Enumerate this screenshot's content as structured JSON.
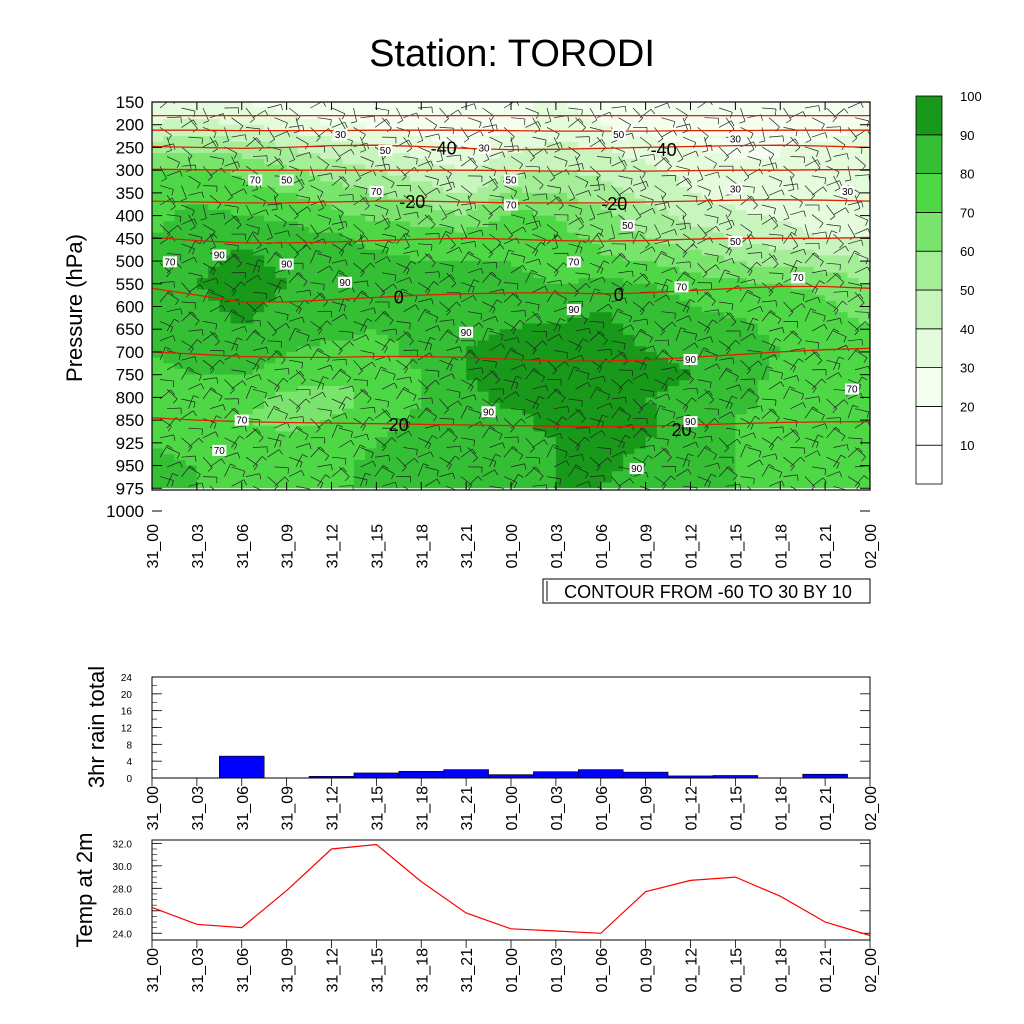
{
  "title": "Station: TORODI",
  "contour_note": "CONTOUR FROM -60 TO 30 BY 10",
  "colors": {
    "rain_bar": "#0000ff",
    "temp_line": "#ff0000",
    "temp_contour": "#dd2200",
    "wind_barb": "#222222",
    "rh_shades": [
      "#ffffff",
      "#ffffff",
      "#f4fff0",
      "#e4fbdc",
      "#c8f5bd",
      "#a5ee98",
      "#7ae56d",
      "#4fd846",
      "#35bf35",
      "#18991a"
    ]
  },
  "chart_data": [
    {
      "type": "heatmap",
      "name": "relative humidity cross-section",
      "ylabel": "Pressure (hPa)",
      "xlabel": "",
      "x_ticks": [
        "31_00",
        "31_03",
        "31_06",
        "31_09",
        "31_12",
        "31_15",
        "31_18",
        "31_21",
        "01_00",
        "01_03",
        "01_06",
        "01_09",
        "01_12",
        "01_15",
        "01_18",
        "01_21",
        "02_00"
      ],
      "y_ticks": [
        150,
        200,
        250,
        300,
        350,
        400,
        450,
        500,
        550,
        600,
        650,
        700,
        750,
        800,
        850,
        925,
        950,
        975,
        1000
      ],
      "colorbar_levels": [
        10,
        20,
        30,
        40,
        50,
        60,
        70,
        80,
        90,
        100
      ],
      "rh_grid": [
        [
          35,
          35,
          30,
          25,
          22,
          20,
          22,
          25,
          30,
          30,
          28,
          25,
          22,
          20,
          22,
          25,
          28
        ],
        [
          40,
          42,
          40,
          35,
          30,
          28,
          25,
          22,
          28,
          32,
          30,
          25,
          22,
          20,
          22,
          25,
          30
        ],
        [
          55,
          58,
          55,
          50,
          45,
          40,
          35,
          30,
          38,
          42,
          40,
          35,
          30,
          28,
          30,
          32,
          35
        ],
        [
          70,
          72,
          68,
          62,
          55,
          50,
          45,
          40,
          48,
          50,
          48,
          42,
          36,
          32,
          30,
          32,
          35
        ],
        [
          75,
          78,
          74,
          70,
          65,
          60,
          55,
          48,
          62,
          60,
          55,
          48,
          40,
          35,
          32,
          32,
          35
        ],
        [
          78,
          82,
          80,
          78,
          72,
          68,
          65,
          60,
          72,
          70,
          62,
          55,
          48,
          42,
          38,
          35,
          38
        ],
        [
          80,
          85,
          88,
          85,
          82,
          78,
          76,
          75,
          78,
          74,
          68,
          60,
          55,
          50,
          45,
          40,
          40
        ],
        [
          80,
          88,
          92,
          88,
          85,
          82,
          80,
          80,
          80,
          76,
          72,
          70,
          65,
          60,
          55,
          55,
          50
        ],
        [
          82,
          90,
          94,
          90,
          86,
          84,
          82,
          82,
          82,
          80,
          82,
          80,
          75,
          72,
          70,
          68,
          60
        ],
        [
          82,
          88,
          92,
          88,
          85,
          82,
          82,
          84,
          84,
          86,
          90,
          85,
          80,
          78,
          75,
          72,
          65
        ],
        [
          80,
          86,
          90,
          85,
          82,
          80,
          82,
          86,
          90,
          92,
          92,
          88,
          85,
          82,
          78,
          75,
          70
        ],
        [
          80,
          82,
          84,
          80,
          78,
          78,
          82,
          90,
          94,
          94,
          94,
          90,
          88,
          85,
          80,
          78,
          75
        ],
        [
          78,
          80,
          80,
          76,
          72,
          74,
          80,
          90,
          94,
          96,
          96,
          92,
          90,
          84,
          78,
          76,
          75
        ],
        [
          78,
          76,
          72,
          68,
          66,
          72,
          80,
          88,
          92,
          94,
          94,
          90,
          88,
          82,
          78,
          76,
          75
        ],
        [
          78,
          74,
          70,
          68,
          70,
          76,
          82,
          86,
          88,
          92,
          94,
          92,
          86,
          80,
          78,
          76,
          75
        ],
        [
          80,
          76,
          74,
          72,
          75,
          80,
          84,
          86,
          88,
          90,
          92,
          90,
          84,
          80,
          78,
          76,
          75
        ],
        [
          82,
          80,
          78,
          76,
          78,
          82,
          85,
          86,
          88,
          90,
          92,
          88,
          84,
          80,
          78,
          76,
          76
        ],
        [
          82,
          80,
          78,
          76,
          78,
          82,
          85,
          86,
          88,
          90,
          90,
          86,
          82,
          80,
          78,
          76,
          76
        ]
      ],
      "rh_labels": [
        {
          "text": "30",
          "t": 4.2,
          "p": 225
        },
        {
          "text": "50",
          "t": 5.2,
          "p": 260
        },
        {
          "text": "30",
          "t": 7.4,
          "p": 255
        },
        {
          "text": "50",
          "t": 10.4,
          "p": 225
        },
        {
          "text": "30",
          "t": 13.0,
          "p": 235
        },
        {
          "text": "70",
          "t": 2.3,
          "p": 325
        },
        {
          "text": "50",
          "t": 3.0,
          "p": 325
        },
        {
          "text": "70",
          "t": 5.0,
          "p": 350
        },
        {
          "text": "50",
          "t": 8.0,
          "p": 325
        },
        {
          "text": "70",
          "t": 8.0,
          "p": 380
        },
        {
          "text": "30",
          "t": 13.0,
          "p": 345
        },
        {
          "text": "30",
          "t": 15.5,
          "p": 350
        },
        {
          "text": "50",
          "t": 10.6,
          "p": 425
        },
        {
          "text": "50",
          "t": 13.0,
          "p": 460
        },
        {
          "text": "70",
          "t": 0.4,
          "p": 505
        },
        {
          "text": "90",
          "t": 1.5,
          "p": 490
        },
        {
          "text": "90",
          "t": 3.0,
          "p": 510
        },
        {
          "text": "90",
          "t": 4.3,
          "p": 550
        },
        {
          "text": "70",
          "t": 9.4,
          "p": 505
        },
        {
          "text": "70",
          "t": 11.8,
          "p": 560
        },
        {
          "text": "70",
          "t": 14.4,
          "p": 540
        },
        {
          "text": "90",
          "t": 9.4,
          "p": 610
        },
        {
          "text": "90",
          "t": 7.0,
          "p": 660
        },
        {
          "text": "90",
          "t": 12.0,
          "p": 720
        },
        {
          "text": "70",
          "t": 15.6,
          "p": 785
        },
        {
          "text": "90",
          "t": 7.5,
          "p": 835
        },
        {
          "text": "70",
          "t": 2.0,
          "p": 855
        },
        {
          "text": "90",
          "t": 12.0,
          "p": 860
        },
        {
          "text": "70",
          "t": 1.5,
          "p": 935
        },
        {
          "text": "90",
          "t": 10.8,
          "p": 955
        }
      ],
      "temp_contours": [
        {
          "label": "-40",
          "p": [
            248,
            250,
            252,
            250,
            246,
            245,
            248,
            252,
            255,
            254,
            252,
            250,
            248,
            246,
            245,
            247,
            250
          ],
          "label_t": 6.5
        },
        {
          "label": "-20",
          "p": [
            368,
            370,
            372,
            372,
            370,
            368,
            368,
            370,
            372,
            372,
            372,
            370,
            368,
            366,
            365,
            366,
            368
          ],
          "label_t": 5.8
        },
        {
          "label": "0",
          "p": [
            560,
            575,
            590,
            590,
            585,
            580,
            575,
            572,
            570,
            570,
            572,
            570,
            565,
            560,
            556,
            556,
            560
          ],
          "label_t": 5.5
        },
        {
          "label": "20",
          "p": [
            845,
            850,
            855,
            858,
            860,
            862,
            864,
            866,
            868,
            870,
            872,
            870,
            866,
            862,
            858,
            856,
            855
          ],
          "label_t": 5.5
        }
      ],
      "temp_contours_flat": [
        {
          "p": [
            180,
            180,
            180,
            180,
            180,
            180,
            180,
            180,
            180,
            180,
            180,
            180,
            180,
            180,
            180,
            180,
            180
          ]
        },
        {
          "p": [
            212,
            212,
            213,
            213,
            213,
            212,
            212,
            212,
            213,
            214,
            214,
            214,
            213,
            213,
            212,
            212,
            212
          ]
        },
        {
          "p": [
            298,
            299,
            300,
            300,
            300,
            300,
            300,
            300,
            301,
            302,
            302,
            302,
            301,
            300,
            300,
            299,
            299
          ]
        },
        {
          "p": [
            448,
            455,
            460,
            460,
            458,
            455,
            452,
            450,
            452,
            455,
            456,
            455,
            452,
            450,
            450,
            450,
            448
          ]
        },
        {
          "p": [
            700,
            705,
            710,
            712,
            712,
            710,
            710,
            712,
            716,
            720,
            720,
            718,
            712,
            706,
            700,
            695,
            692
          ]
        }
      ],
      "contour_label_extra": [
        {
          "label": "-40",
          "t": 11.4,
          "p": 253
        },
        {
          "label": "-20",
          "t": 10.3,
          "p": 372
        },
        {
          "label": "0",
          "t": 10.4,
          "p": 572
        },
        {
          "label": "20",
          "t": 11.8,
          "p": 880
        }
      ]
    },
    {
      "type": "bar",
      "ylabel": "3hr rain total",
      "xlabel": "",
      "categories": [
        "31_00",
        "31_03",
        "31_06",
        "31_09",
        "31_12",
        "31_15",
        "31_18",
        "31_21",
        "01_00",
        "01_03",
        "01_06",
        "01_09",
        "01_12",
        "01_15",
        "01_18",
        "01_21",
        "02_00"
      ],
      "values": [
        0,
        0,
        5.2,
        0,
        0.4,
        1.2,
        1.6,
        2.0,
        0.8,
        1.5,
        2.0,
        1.4,
        0.5,
        0.6,
        0,
        0.9,
        0
      ],
      "ylim": [
        0,
        24
      ],
      "y_ticks": [
        0,
        4,
        8,
        12,
        16,
        20,
        24
      ]
    },
    {
      "type": "line",
      "ylabel": "Temp at 2m",
      "xlabel": "",
      "categories": [
        "31_00",
        "31_03",
        "31_06",
        "31_09",
        "31_12",
        "31_15",
        "31_18",
        "31_21",
        "01_00",
        "01_03",
        "01_06",
        "01_09",
        "01_12",
        "01_15",
        "01_18",
        "01_21",
        "02_00"
      ],
      "values": [
        26.3,
        24.8,
        24.5,
        27.8,
        31.5,
        31.9,
        28.6,
        25.8,
        24.4,
        24.2,
        24.0,
        27.7,
        28.7,
        29.0,
        27.3,
        25.0,
        23.8
      ],
      "ylim": [
        23.4,
        32.3
      ],
      "y_ticks": [
        24.0,
        26.0,
        28.0,
        30.0,
        32.0
      ],
      "y_tick_labels": [
        "24.0",
        "26.0",
        "28.0",
        "30.0",
        "32.0"
      ]
    }
  ]
}
